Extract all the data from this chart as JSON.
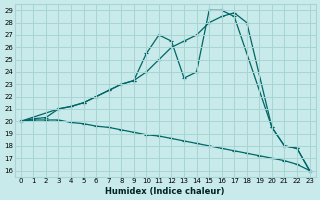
{
  "xlabel": "Humidex (Indice chaleur)",
  "bg_color": "#c8eaea",
  "line_color": "#006666",
  "grid_color": "#a8d4d4",
  "xlim": [
    -0.5,
    23.5
  ],
  "ylim": [
    15.5,
    29.5
  ],
  "xticks": [
    0,
    1,
    2,
    3,
    4,
    5,
    6,
    7,
    8,
    9,
    10,
    11,
    12,
    13,
    14,
    15,
    16,
    17,
    18,
    19,
    20,
    21,
    22,
    23
  ],
  "yticks": [
    16,
    17,
    18,
    19,
    20,
    21,
    22,
    23,
    24,
    25,
    26,
    27,
    28,
    29
  ],
  "curve1_x": [
    0,
    1,
    2,
    3,
    4,
    5,
    6,
    7,
    8,
    9,
    10,
    11,
    12,
    13,
    14,
    15,
    16,
    17,
    20,
    21,
    22,
    23
  ],
  "curve1_y": [
    20.0,
    20.2,
    20.3,
    21.0,
    21.2,
    21.5,
    22.0,
    22.5,
    23.0,
    23.3,
    25.5,
    27.0,
    26.5,
    23.5,
    24.0,
    29.0,
    29.0,
    28.5,
    19.5,
    18.0,
    17.8,
    16.0
  ],
  "curve2_x": [
    0,
    3,
    4,
    5,
    6,
    7,
    8,
    9,
    10,
    11,
    12,
    13,
    14,
    15,
    16,
    17,
    18,
    20,
    21,
    22,
    23
  ],
  "curve2_y": [
    20.0,
    21.0,
    21.2,
    21.5,
    22.0,
    22.5,
    23.0,
    23.3,
    24.0,
    25.0,
    26.0,
    26.5,
    27.0,
    28.0,
    28.5,
    28.8,
    28.0,
    19.5,
    18.0,
    17.8,
    16.0
  ],
  "curve3_x": [
    0,
    1,
    2,
    3,
    4,
    5,
    6,
    7,
    8,
    9,
    10,
    11,
    12,
    13,
    14,
    15,
    16,
    17,
    18,
    19,
    20,
    21,
    22,
    23
  ],
  "curve3_y": [
    20.0,
    20.1,
    20.1,
    20.1,
    19.9,
    19.8,
    19.6,
    19.5,
    19.3,
    19.1,
    18.9,
    18.8,
    18.6,
    18.4,
    18.2,
    18.0,
    17.8,
    17.6,
    17.4,
    17.2,
    17.0,
    16.8,
    16.5,
    16.0
  ]
}
